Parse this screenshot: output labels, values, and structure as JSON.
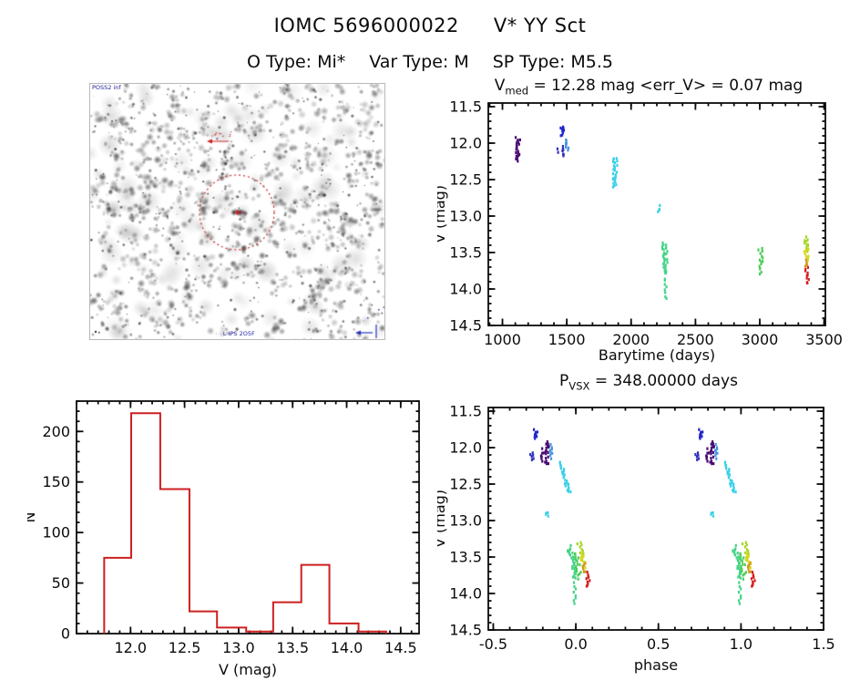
{
  "header": {
    "title_id": "IOMC 5696000022",
    "title_name": "V* YY Sct",
    "subtitle_items": [
      "O Type: Mi*",
      "Var Type: M",
      "SP Type: M5.5"
    ]
  },
  "finder": {
    "survey_label": "POSS2 inf",
    "caption": "L IPS 2O5F",
    "circle_color": "#cc2a2a",
    "marker_color": "#cc2222",
    "compass_color": "#2233bb"
  },
  "chart_data": [
    {
      "type": "scatter",
      "name": "light_curve_vs_barytime",
      "title_pre": "V",
      "title_sub": "med",
      "title_post": " = 12.28 mag <err_V> = 0.07 mag",
      "xlabel": "Barytime (days)",
      "ylabel": "V (mag)",
      "xlim": [
        890,
        3510
      ],
      "ylim": [
        11.45,
        14.5
      ],
      "y_increases_up": false,
      "xticks": [
        1000,
        1500,
        2000,
        2500,
        3000,
        3500
      ],
      "xtick_labels": [
        "1000",
        "1500",
        "2000",
        "2500",
        "3000",
        "3500"
      ],
      "yticks": [
        11.5,
        12.0,
        12.5,
        13.0,
        13.5,
        14.0,
        14.5
      ],
      "ytick_labels": [
        "11.5",
        "12.0",
        "12.5",
        "13.0",
        "13.5",
        "14.0",
        "14.5"
      ],
      "x_minor_step": 100,
      "y_minor_step": 0.1,
      "grid": false,
      "legend": false,
      "clusters": [
        {
          "x": 1120,
          "y1": 11.93,
          "y2": 12.24,
          "n": 24,
          "w": 5,
          "color": "#4b0c74"
        },
        {
          "x": 1465,
          "y1": 11.76,
          "y2": 11.9,
          "n": 9,
          "w": 4,
          "color": "#2128cc"
        },
        {
          "x": 1462,
          "y1": 12.04,
          "y2": 12.19,
          "n": 7,
          "w": 4,
          "color": "#3232c0"
        },
        {
          "x": 1432,
          "y1": 12.07,
          "y2": 12.13,
          "n": 2,
          "w": 2,
          "color": "#3232c0"
        },
        {
          "x": 1505,
          "y1": 11.94,
          "y2": 12.1,
          "n": 8,
          "w": 4,
          "color": "#4494e0"
        },
        {
          "x": 1876,
          "y1": 12.19,
          "y2": 12.61,
          "n": 26,
          "w": 5,
          "color": "#3cd0e8"
        },
        {
          "x": 2218,
          "y1": 12.86,
          "y2": 12.94,
          "n": 4,
          "w": 3,
          "color": "#3cd0e8"
        },
        {
          "x": 2262,
          "y1": 13.36,
          "y2": 13.8,
          "n": 30,
          "w": 6,
          "color": "#46d488"
        },
        {
          "x": 2266,
          "y1": 13.83,
          "y2": 14.16,
          "n": 8,
          "w": 3,
          "color": "#46d488"
        },
        {
          "x": 3005,
          "y1": 13.43,
          "y2": 13.8,
          "n": 15,
          "w": 5,
          "color": "#4ecc5a"
        },
        {
          "x": 3360,
          "y1": 13.29,
          "y2": 13.48,
          "n": 11,
          "w": 5,
          "color": "#a6d626"
        },
        {
          "x": 3363,
          "y1": 13.45,
          "y2": 13.62,
          "n": 9,
          "w": 5,
          "color": "#d8d820"
        },
        {
          "x": 3365,
          "y1": 13.59,
          "y2": 13.7,
          "n": 5,
          "w": 3,
          "color": "#d2961c"
        },
        {
          "x": 3367,
          "y1": 13.7,
          "y2": 13.93,
          "n": 10,
          "w": 4,
          "color": "#d41e1e"
        }
      ]
    },
    {
      "type": "histogram",
      "name": "V_magnitude_histogram",
      "xlabel": "V (mag)",
      "ylabel": "N",
      "xlim": [
        11.5,
        14.67
      ],
      "ylim": [
        0,
        230
      ],
      "y_increases_up": true,
      "xticks": [
        12.0,
        12.5,
        13.0,
        13.5,
        14.0,
        14.5
      ],
      "xtick_labels": [
        "12.0",
        "12.5",
        "13.0",
        "13.5",
        "14.0",
        "14.5"
      ],
      "yticks": [
        0,
        50,
        100,
        150,
        200
      ],
      "ytick_labels": [
        "0",
        "50",
        "100",
        "150",
        "200"
      ],
      "x_minor_step": 0.1,
      "y_minor_step": 10,
      "grid": false,
      "legend": false,
      "bin_edges": [
        11.756,
        12.006,
        12.275,
        12.545,
        12.8,
        13.07,
        13.32,
        13.58,
        13.84,
        14.11,
        14.365
      ],
      "counts": [
        75,
        218,
        143,
        22,
        6,
        2,
        31,
        68,
        10,
        2
      ],
      "color": "#cc2020"
    },
    {
      "type": "scatter",
      "name": "phase_folded_light_curve",
      "title_pre": "P",
      "title_sub": "VSX",
      "title_post": " = 348.00000 days",
      "xlabel": "phase",
      "ylabel": "V (mag)",
      "xlim": [
        -0.53,
        1.5
      ],
      "ylim": [
        11.45,
        14.5
      ],
      "y_increases_up": false,
      "xticks": [
        -0.5,
        0.0,
        0.5,
        1.0,
        1.5
      ],
      "xtick_labels": [
        "-0.5",
        "0.0",
        "0.5",
        "1.0",
        "1.5"
      ],
      "yticks": [
        11.5,
        12.0,
        12.5,
        13.0,
        13.5,
        14.0,
        14.5
      ],
      "ytick_labels": [
        "11.5",
        "12.0",
        "12.5",
        "13.0",
        "13.5",
        "14.0",
        "14.5"
      ],
      "x_minor_step": 0.1,
      "y_minor_step": 0.1,
      "grid": false,
      "legend": false,
      "repeat_offset": 1.0,
      "clusters": [
        {
          "x": -0.243,
          "y1": 11.76,
          "y2": 11.88,
          "n": 9,
          "w": 4,
          "color": "#2128cc"
        },
        {
          "x": -0.266,
          "y1": 12.05,
          "y2": 12.19,
          "n": 6,
          "w": 4,
          "color": "#3232c0"
        },
        {
          "x": -0.187,
          "y1": 11.92,
          "y2": 12.23,
          "n": 26,
          "w": 9,
          "color": "#4b0c74"
        },
        {
          "x": -0.146,
          "y1": 11.95,
          "y2": 12.15,
          "n": 8,
          "w": 4,
          "color": "#4494e0"
        },
        {
          "x": -0.065,
          "y1": 12.19,
          "y2": 12.63,
          "n": 26,
          "w": 4,
          "tilt": 9,
          "color": "#3cd0e8"
        },
        {
          "x": -0.175,
          "y1": 12.87,
          "y2": 12.95,
          "n": 4,
          "w": 3,
          "color": "#3cd0e8"
        },
        {
          "x": -0.02,
          "y1": 13.35,
          "y2": 13.8,
          "n": 30,
          "w": 6,
          "tilt": 7,
          "color": "#46d488"
        },
        {
          "x": -0.005,
          "y1": 13.83,
          "y2": 14.17,
          "n": 8,
          "w": 3,
          "color": "#46d488"
        },
        {
          "x": 0.012,
          "y1": 13.43,
          "y2": 13.8,
          "n": 15,
          "w": 5,
          "tilt": 5,
          "color": "#4ecc5a"
        },
        {
          "x": 0.03,
          "y1": 13.29,
          "y2": 13.55,
          "n": 12,
          "w": 5,
          "tilt": 4,
          "color": "#a6d626"
        },
        {
          "x": 0.042,
          "y1": 13.45,
          "y2": 13.65,
          "n": 10,
          "w": 5,
          "tilt": 3,
          "color": "#d8d820"
        },
        {
          "x": 0.05,
          "y1": 13.58,
          "y2": 13.72,
          "n": 6,
          "w": 3,
          "color": "#d2961c"
        },
        {
          "x": 0.075,
          "y1": 13.7,
          "y2": 13.92,
          "n": 10,
          "w": 4,
          "color": "#d41e1e"
        }
      ]
    }
  ]
}
